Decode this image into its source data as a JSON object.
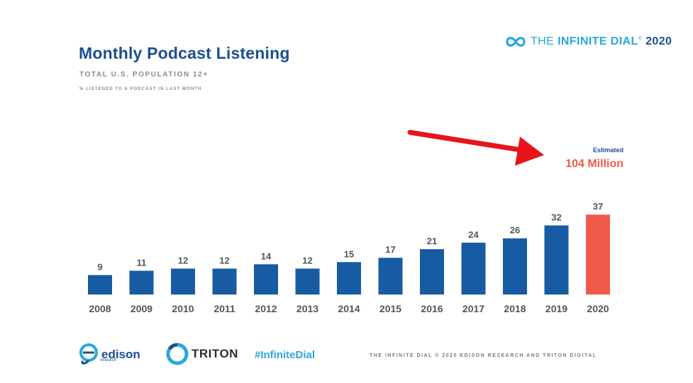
{
  "header": {
    "title": "Monthly Podcast Listening",
    "subtitle": "TOTAL U.S. POPULATION 12+",
    "note": "% LISTENED TO A PODCAST IN LAST MONTH"
  },
  "brand": {
    "icon": "infinity-icon",
    "the": "THE",
    "name": "INFINITE DIAL",
    "trademark": "®",
    "year": "2020"
  },
  "chart_data": {
    "type": "bar",
    "categories": [
      "2008",
      "2009",
      "2010",
      "2011",
      "2012",
      "2013",
      "2014",
      "2015",
      "2016",
      "2017",
      "2018",
      "2019",
      "2020"
    ],
    "values": [
      9,
      11,
      12,
      12,
      14,
      12,
      15,
      17,
      21,
      24,
      26,
      32,
      37
    ],
    "highlight_index": 12,
    "annotation": {
      "label": "Estimated",
      "value": "104 Million"
    },
    "title": "",
    "xlabel": "",
    "ylabel": "",
    "ylim": [
      0,
      40
    ],
    "grid": false,
    "legend": "none"
  },
  "colors": {
    "bar": "#175ba3",
    "highlight_bar": "#f15a4a",
    "arrow": "#e8141c",
    "annotation_value": "#f15a4a",
    "annotation_label": "#1d4f91",
    "title": "#1d4f91",
    "accent": "#2aa7df"
  },
  "footer": {
    "edison_icon": "edison-logo-icon",
    "edison": "edison",
    "edison_sub": "research",
    "triton_icon": "triton-logo-icon",
    "triton": "TRITON",
    "hashtag": "#InfiniteDial",
    "copyright": "THE INFINITE DIAL  © 2020 EDISON RESEARCH AND TRITON DIGITAL"
  }
}
